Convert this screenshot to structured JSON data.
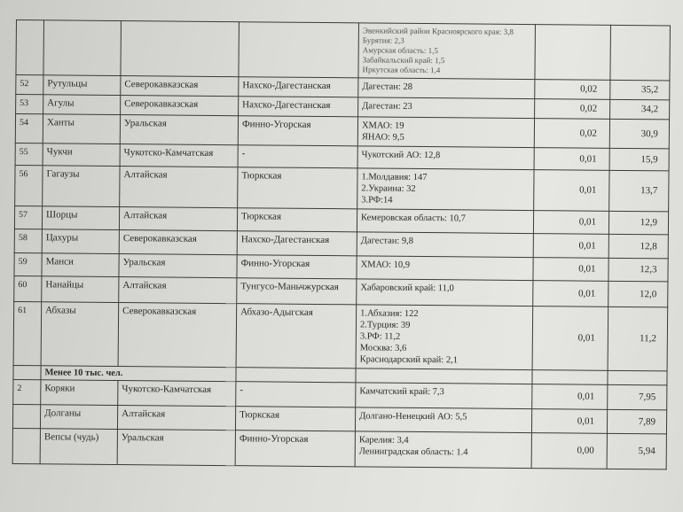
{
  "continued_regions": [
    "Эвенкийский район Красноярского края: 3,8",
    "Бурятия: 2,3",
    "Амурская область: 1,5",
    "Забайкальский край: 1,5",
    "Иркутская область: 1,4"
  ],
  "rows": [
    {
      "num": "52",
      "name": "Рутульцы",
      "family": "Северокавказская",
      "group": "Нахско-Дагестанская",
      "regions": [
        "Дагестан: 28"
      ],
      "share": "0,02",
      "count": "35,2"
    },
    {
      "num": "53",
      "name": "Агулы",
      "family": "Северокавказская",
      "group": "Нахско-Дагестанская",
      "regions": [
        "Дагестан: 23"
      ],
      "share": "0,02",
      "count": "34,2"
    },
    {
      "num": "54",
      "name": "Ханты",
      "family": "Уральская",
      "group": "Финно-Угорская",
      "regions": [
        "ХМАО: 19",
        "ЯНАО: 9,5"
      ],
      "share": "0,02",
      "count": "30,9"
    },
    {
      "num": "55",
      "name": "Чукчи",
      "family": "Чукотско-Камчатская",
      "group": "-",
      "regions": [
        "Чукотский АО: 12,8"
      ],
      "share": "0,01",
      "count": "15,9"
    },
    {
      "num": "56",
      "name": "Гагаузы",
      "family": "Алтайская",
      "group": "Тюркская",
      "regions": [
        "1.Молдавия: 147",
        "2.Украина: 32",
        "3.РФ:14"
      ],
      "share": "0,01",
      "count": "13,7"
    },
    {
      "num": "57",
      "name": "Шорцы",
      "family": "Алтайская",
      "group": "Тюркская",
      "regions": [
        "Кемеровская область: 10,7"
      ],
      "share": "0,01",
      "count": "12,9"
    },
    {
      "num": "58",
      "name": "Цахуры",
      "family": "Северокавказская",
      "group": "Нахско-Дагестанская",
      "regions": [
        "Дагестан: 9,8"
      ],
      "share": "0,01",
      "count": "12,8"
    },
    {
      "num": "59",
      "name": "Манси",
      "family": "Уральская",
      "group": "Финно-Угорская",
      "regions": [
        "ХМАО: 10,9"
      ],
      "share": "0,01",
      "count": "12,3"
    },
    {
      "num": "60",
      "name": "Нанайцы",
      "family": "Алтайская",
      "group": "Тунгусо-Маньчжурская",
      "regions": [
        "Хабаровский край: 11,0"
      ],
      "share": "0,01",
      "count": "12,0"
    },
    {
      "num": "61",
      "name": "Абхазы",
      "family": "Северокавказская",
      "group": "Абхазо-Адыгская",
      "regions": [
        "1.Абхазия: 122",
        "2.Турция: 39",
        "3.РФ: 11,2",
        "Москва: 3,6",
        "Краснодарский край: 2,1"
      ],
      "share": "0,01",
      "count": "11,2"
    }
  ],
  "section_label": "Менее 10 тыс. чел.",
  "rows2": [
    {
      "num": "2",
      "name": "Коряки",
      "family": "Чукотско-Камчатская",
      "group": "-",
      "regions": [
        "Камчатский край: 7,3"
      ],
      "share": "0,01",
      "count": "7,95"
    },
    {
      "num": "",
      "name": "Долганы",
      "family": "Алтайская",
      "group": "Тюркская",
      "regions": [
        "Долгано-Ненецкий АО: 5,5"
      ],
      "share": "0,01",
      "count": "7,89"
    },
    {
      "num": "",
      "name": "Вепсы (чудь)",
      "family": "Уральская",
      "group": "Финно-Угорская",
      "regions": [
        "Карелия: 3,4",
        "Ленинградская область: 1.4"
      ],
      "share": "0,00",
      "count": "5,94"
    }
  ]
}
